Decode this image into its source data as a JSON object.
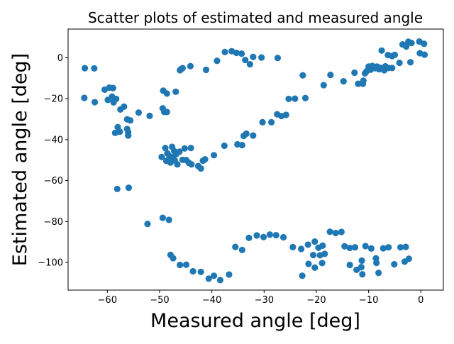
{
  "chart_data": {
    "type": "scatter",
    "title": "Scatter plots of estimated and measured angle",
    "xlabel": "Measured angle [deg]",
    "ylabel": "Estimated angle [deg]",
    "xlim": [
      -67.5,
      4.3
    ],
    "ylim": [
      -113.5,
      14
    ],
    "xticks": [
      -60,
      -50,
      -40,
      -30,
      -20,
      -10,
      0
    ],
    "yticks": [
      -100,
      -80,
      -60,
      -40,
      -20,
      0
    ],
    "grid": false,
    "marker_color": "#1f77b4",
    "series": [
      {
        "points": [
          [
            -64.3,
            -5.1
          ],
          [
            -62.5,
            -5.2
          ],
          [
            -64.4,
            -19.6
          ],
          [
            -62.4,
            -21.7
          ],
          [
            -60.5,
            -15.6
          ],
          [
            -59.6,
            -14.6
          ],
          [
            -59.9,
            -20.6
          ],
          [
            -58.9,
            -14.8
          ],
          [
            -59.1,
            -19.0
          ],
          [
            -58.8,
            -21.8
          ],
          [
            -58.3,
            -20.1
          ],
          [
            -57.5,
            -25.3
          ],
          [
            -56.8,
            -23.9
          ],
          [
            -58.5,
            -36.7
          ],
          [
            -58.0,
            -33.9
          ],
          [
            -57.6,
            -36.1
          ],
          [
            -56.2,
            -30.1
          ],
          [
            -56.2,
            -34.8
          ],
          [
            -56.0,
            -38.0
          ],
          [
            -55.6,
            -30.6
          ],
          [
            -56.0,
            -36.4
          ],
          [
            -54.0,
            -26.8
          ],
          [
            -51.9,
            -28.4
          ],
          [
            -49.3,
            -16.1
          ],
          [
            -48.6,
            -17.5
          ],
          [
            -46.9,
            -16.6
          ],
          [
            -49.4,
            -24.7
          ],
          [
            -49.1,
            -26.5
          ],
          [
            -48.6,
            -26.5
          ],
          [
            -46.1,
            -6.1
          ],
          [
            -45.6,
            -5.1
          ],
          [
            -44.1,
            -4.1
          ],
          [
            -45.9,
            -5.6
          ],
          [
            -41.1,
            -5.9
          ],
          [
            -49.6,
            -48.5
          ],
          [
            -48.9,
            -44.1
          ],
          [
            -48.5,
            -46.7
          ],
          [
            -48.1,
            -48.1
          ],
          [
            -47.6,
            -43.5
          ],
          [
            -47.2,
            -45.6
          ],
          [
            -47.9,
            -51.2
          ],
          [
            -47.5,
            -48.6
          ],
          [
            -47.1,
            -50.1
          ],
          [
            -46.8,
            -47.0
          ],
          [
            -46.6,
            -52.1
          ],
          [
            -46.2,
            -45.9
          ],
          [
            -45.6,
            -49.9
          ],
          [
            -45.2,
            -44.3
          ],
          [
            -44.9,
            -50.0
          ],
          [
            -44.4,
            -51.3
          ],
          [
            -44.0,
            -44.1
          ],
          [
            -43.9,
            -52.1
          ],
          [
            -42.6,
            -52.9
          ],
          [
            -42.1,
            -54.1
          ],
          [
            -41.7,
            -50.3
          ],
          [
            -41.3,
            -49.6
          ],
          [
            -39.6,
            -47.6
          ],
          [
            -48.7,
            -50.4
          ],
          [
            -37.6,
            -43.0
          ],
          [
            -35.1,
            -42.3
          ],
          [
            -34.2,
            -42.7
          ],
          [
            -33.9,
            -38.2
          ],
          [
            -33.4,
            -37.1
          ],
          [
            -32.1,
            -38.0
          ],
          [
            -30.3,
            -31.5
          ],
          [
            -28.6,
            -31.5
          ],
          [
            -27.5,
            -27.6
          ],
          [
            -26.7,
            -28.5
          ],
          [
            -25.8,
            -27.9
          ],
          [
            -25.3,
            -20.1
          ],
          [
            -24.1,
            -20.0
          ],
          [
            -22.1,
            -19.7
          ],
          [
            -39.0,
            -1.5
          ],
          [
            -37.5,
            2.8
          ],
          [
            -36.2,
            3.2
          ],
          [
            -35.3,
            2.4
          ],
          [
            -34.3,
            2.0
          ],
          [
            -33.6,
            -1.1
          ],
          [
            -32.7,
            -3.2
          ],
          [
            -32.1,
            0.4
          ],
          [
            -30.5,
            0.1
          ],
          [
            -27.4,
            -0.1
          ],
          [
            -22.6,
            -8.6
          ],
          [
            -18.6,
            -13.4
          ],
          [
            -17.3,
            -8.4
          ],
          [
            -14.8,
            -11.5
          ],
          [
            -12.7,
            -7.3
          ],
          [
            -12.0,
            -12.7
          ],
          [
            -11.1,
            -12.7
          ],
          [
            -11.0,
            -11.2
          ],
          [
            -10.7,
            -7.6
          ],
          [
            -10.4,
            -6.6
          ],
          [
            -10.0,
            -4.3
          ],
          [
            -9.6,
            -5.8
          ],
          [
            -9.3,
            -4.0
          ],
          [
            -8.8,
            -5.1
          ],
          [
            -8.4,
            -4.3
          ],
          [
            -8.0,
            -5.6
          ],
          [
            -7.8,
            -4.9
          ],
          [
            -7.3,
            -5.3
          ],
          [
            -7.0,
            -6.1
          ],
          [
            -6.8,
            -4.2
          ],
          [
            -6.2,
            -5.0
          ],
          [
            -5.5,
            -5.0
          ],
          [
            -7.5,
            3.5
          ],
          [
            -6.3,
            1.3
          ],
          [
            -5.5,
            0.8
          ],
          [
            -5.0,
            1.4
          ],
          [
            -3.5,
            6.5
          ],
          [
            -2.8,
            5.5
          ],
          [
            -2.4,
            7.8
          ],
          [
            -1.8,
            7.2
          ],
          [
            -0.3,
            7.9
          ],
          [
            0.6,
            6.8
          ],
          [
            0.7,
            1.5
          ],
          [
            -0.2,
            2.2
          ],
          [
            -2.0,
            -2.2
          ],
          [
            -4.1,
            -2.5
          ],
          [
            -58.1,
            -64.1
          ],
          [
            -55.9,
            -63.5
          ],
          [
            -52.3,
            -81.2
          ],
          [
            -49.4,
            -78.2
          ],
          [
            -48.2,
            -79.2
          ],
          [
            -47.9,
            -96.3
          ],
          [
            -47.4,
            -97.9
          ],
          [
            -46.1,
            -101.2
          ],
          [
            -44.9,
            -101.1
          ],
          [
            -43.6,
            -104.3
          ],
          [
            -42.1,
            -104.6
          ],
          [
            -40.6,
            -107.9
          ],
          [
            -39.6,
            -106.5
          ],
          [
            -38.4,
            -108.6
          ],
          [
            -36.7,
            -105.9
          ],
          [
            -35.5,
            -92.4
          ],
          [
            -34.2,
            -93.9
          ],
          [
            -32.9,
            -88.0
          ],
          [
            -31.4,
            -86.8
          ],
          [
            -30.1,
            -87.6
          ],
          [
            -28.9,
            -86.4
          ],
          [
            -27.7,
            -86.7
          ],
          [
            -26.3,
            -87.7
          ],
          [
            -24.5,
            -92.5
          ],
          [
            -22.9,
            -93.4
          ],
          [
            -21.6,
            -91.3
          ],
          [
            -20.3,
            -89.8
          ],
          [
            -19.6,
            -92.8
          ],
          [
            -22.7,
            -106.5
          ],
          [
            -21.5,
            -100.7
          ],
          [
            -20.6,
            -96.4
          ],
          [
            -20.3,
            -102.5
          ],
          [
            -19.3,
            -96.5
          ],
          [
            -18.9,
            -100.3
          ],
          [
            -18.4,
            -95.8
          ],
          [
            -17.4,
            -85.0
          ],
          [
            -16.3,
            -85.6
          ],
          [
            -15.2,
            -85.1
          ],
          [
            -14.6,
            -92.1
          ],
          [
            -13.6,
            -92.9
          ],
          [
            -12.6,
            -92.6
          ],
          [
            -11.3,
            -99.1
          ],
          [
            -11.4,
            -102.3
          ],
          [
            -13.6,
            -101.2
          ],
          [
            -10.6,
            -92.0
          ],
          [
            -9.5,
            -93.2
          ],
          [
            -8.5,
            -100.2
          ],
          [
            -8.1,
            -105.1
          ],
          [
            -7.2,
            -93.1
          ],
          [
            -6.2,
            -92.6
          ],
          [
            -5.1,
            -100.9
          ],
          [
            -3.9,
            -92.6
          ],
          [
            -3.1,
            -99.6
          ],
          [
            -2.3,
            -98.2
          ],
          [
            -2.9,
            -92.4
          ],
          [
            -12.3,
            -103.6
          ],
          [
            -11.2,
            -105.8
          ],
          [
            -18.8,
            -91.8
          ],
          [
            -8.6,
            -98.0
          ]
        ]
      }
    ]
  }
}
